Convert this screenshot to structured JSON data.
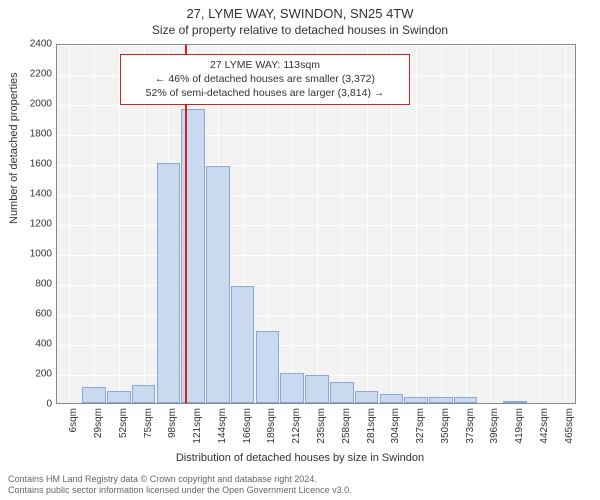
{
  "title_main": "27, LYME WAY, SWINDON, SN25 4TW",
  "title_sub": "Size of property relative to detached houses in Swindon",
  "ylabel": "Number of detached properties",
  "xlabel": "Distribution of detached houses by size in Swindon",
  "copyright_line1": "Contains HM Land Registry data © Crown copyright and database right 2024.",
  "copyright_line2": "Contains public sector information licensed under the Open Government Licence v3.0.",
  "chart": {
    "type": "histogram",
    "background_color": "#f2f2f2",
    "grid_color": "#ffffff",
    "bar_fill": "#c9d9f0",
    "bar_border": "#8aa8d8",
    "ref_line_color": "#d62020",
    "ylim": [
      0,
      2400
    ],
    "ytick_step": 200,
    "xtick_labels": [
      "6sqm",
      "29sqm",
      "52sqm",
      "75sqm",
      "98sqm",
      "121sqm",
      "144sqm",
      "166sqm",
      "189sqm",
      "212sqm",
      "235sqm",
      "258sqm",
      "281sqm",
      "304sqm",
      "327sqm",
      "350sqm",
      "373sqm",
      "396sqm",
      "419sqm",
      "442sqm",
      "465sqm"
    ],
    "categories_start": 6,
    "categories_step": 23,
    "values": [
      0,
      110,
      80,
      120,
      1600,
      1960,
      1580,
      780,
      480,
      200,
      190,
      140,
      80,
      60,
      40,
      40,
      40,
      0,
      10,
      0,
      0
    ],
    "ref_value_x": 113,
    "bar_width_ratio": 0.95
  },
  "annotation": {
    "line1": "27 LYME WAY: 113sqm",
    "line2": "← 46% of detached houses are smaller (3,372)",
    "line3": "52% of semi-detached houses are larger (3,814) →",
    "border_color": "#d62020",
    "fontsize": 10.5
  }
}
